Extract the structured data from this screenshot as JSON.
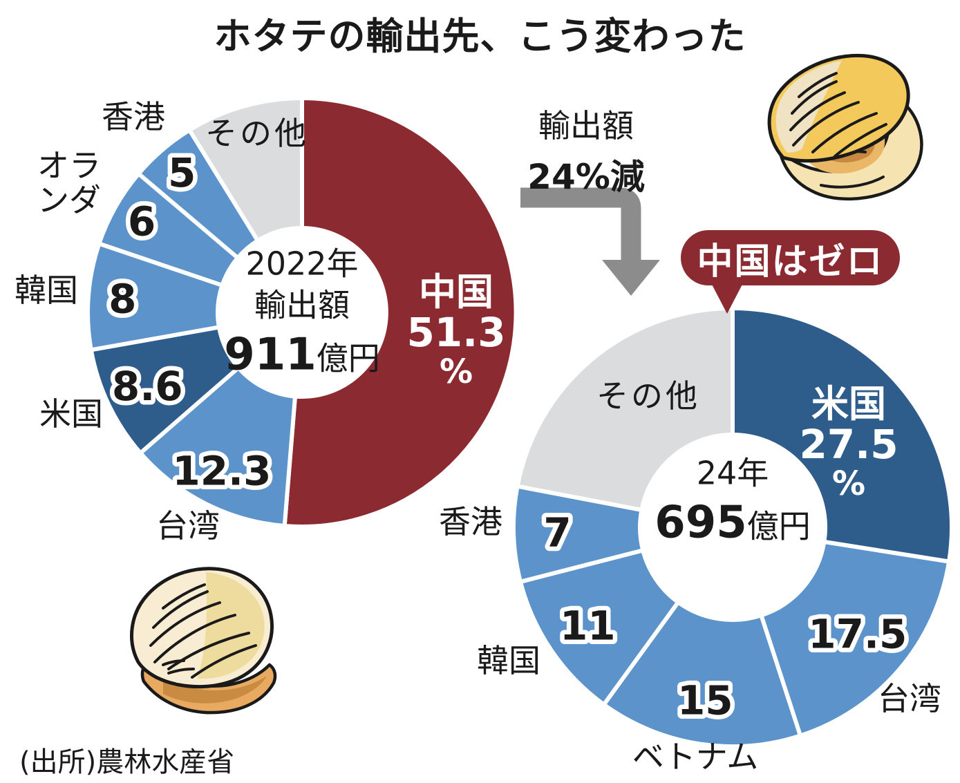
{
  "title": "ホタテの輸出先、こう変わった",
  "source": "(出所)農林水産省",
  "transition": {
    "note_line1": "輸出額",
    "note_line2": "24%減"
  },
  "badge_text": "中国はゼロ",
  "icons": {
    "top_right": "scallop-open-illustration",
    "bottom_left": "scallop-closed-illustration"
  },
  "colors": {
    "red": "#8b2a30",
    "darkblue": "#2e5d8c",
    "lightblue": "#5c93cb",
    "gray": "#dbdcde",
    "arrow_gray": "#8c8c8c",
    "text": "#1a1a1a"
  },
  "chart_data": [
    {
      "type": "pie",
      "subtype": "donut",
      "period_label": "2022年",
      "unit": "%",
      "center": {
        "lines": [
          "2022年",
          "輸出額"
        ],
        "value": "911",
        "unit": "億円"
      },
      "segments": [
        {
          "label": "中国",
          "value": 51.3,
          "display": "51.3",
          "color": "red",
          "label_placement": "inside"
        },
        {
          "label": "台湾",
          "value": 12.3,
          "display": "12.3",
          "color": "lightblue",
          "label_placement": "outside"
        },
        {
          "label": "米国",
          "value": 8.6,
          "display": "8.6",
          "color": "darkblue",
          "label_placement": "outside"
        },
        {
          "label": "韓国",
          "value": 8,
          "display": "8",
          "color": "lightblue",
          "label_placement": "outside"
        },
        {
          "label": "オランダ",
          "value": 6,
          "display": "6",
          "color": "lightblue",
          "label_placement": "outside"
        },
        {
          "label": "香港",
          "value": 5,
          "display": "5",
          "color": "lightblue",
          "label_placement": "outside"
        },
        {
          "label": "その他",
          "value": 8.8,
          "display": "",
          "color": "gray",
          "label_placement": "on-segment"
        }
      ]
    },
    {
      "type": "pie",
      "subtype": "donut",
      "period_label": "24年",
      "unit": "%",
      "annotation": "中国はゼロ",
      "center": {
        "lines": [
          "24年"
        ],
        "value": "695",
        "unit": "億円"
      },
      "segments": [
        {
          "label": "米国",
          "value": 27.5,
          "display": "27.5",
          "color": "darkblue",
          "label_placement": "inside"
        },
        {
          "label": "台湾",
          "value": 17.5,
          "display": "17.5",
          "color": "lightblue",
          "label_placement": "outside"
        },
        {
          "label": "ベトナム",
          "value": 15,
          "display": "15",
          "color": "lightblue",
          "label_placement": "outside"
        },
        {
          "label": "韓国",
          "value": 11,
          "display": "11",
          "color": "lightblue",
          "label_placement": "outside"
        },
        {
          "label": "香港",
          "value": 7,
          "display": "7",
          "color": "lightblue",
          "label_placement": "outside"
        },
        {
          "label": "その他",
          "value": 22,
          "display": "",
          "color": "gray",
          "label_placement": "on-segment"
        }
      ]
    }
  ]
}
